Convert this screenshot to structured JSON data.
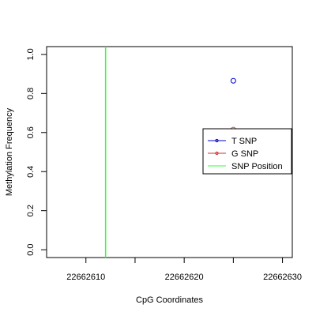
{
  "chart_data": {
    "type": "scatter",
    "xlabel": "CpG Coordinates",
    "ylabel": "Methylation Frequency",
    "xlim": [
      22662606,
      22662631
    ],
    "ylim": [
      -0.04,
      1.04
    ],
    "x_ticks": [
      22662610,
      22662615,
      22662620,
      22662625,
      22662630
    ],
    "x_tick_labels": [
      "22662610",
      "",
      "22662620",
      "",
      "22662630"
    ],
    "y_ticks": [
      0.0,
      0.2,
      0.4,
      0.6,
      0.8,
      1.0
    ],
    "y_tick_labels": [
      "0.0",
      "0.2",
      "0.4",
      "0.6",
      "0.8",
      "1.0"
    ],
    "grid": false,
    "legend_position": "right",
    "series": [
      {
        "name": "T SNP",
        "color": "#0000cc",
        "marker": "open-circle",
        "points": [
          {
            "x": 22662625,
            "y": 0.865
          }
        ]
      },
      {
        "name": "G SNP",
        "color": "#cc3333",
        "marker": "open-circle",
        "points": [
          {
            "x": 22662625,
            "y": 0.615
          }
        ]
      },
      {
        "name": "SNP Position",
        "color": "#33ff33",
        "marker": "vertical-line",
        "x": 22662612
      }
    ]
  }
}
